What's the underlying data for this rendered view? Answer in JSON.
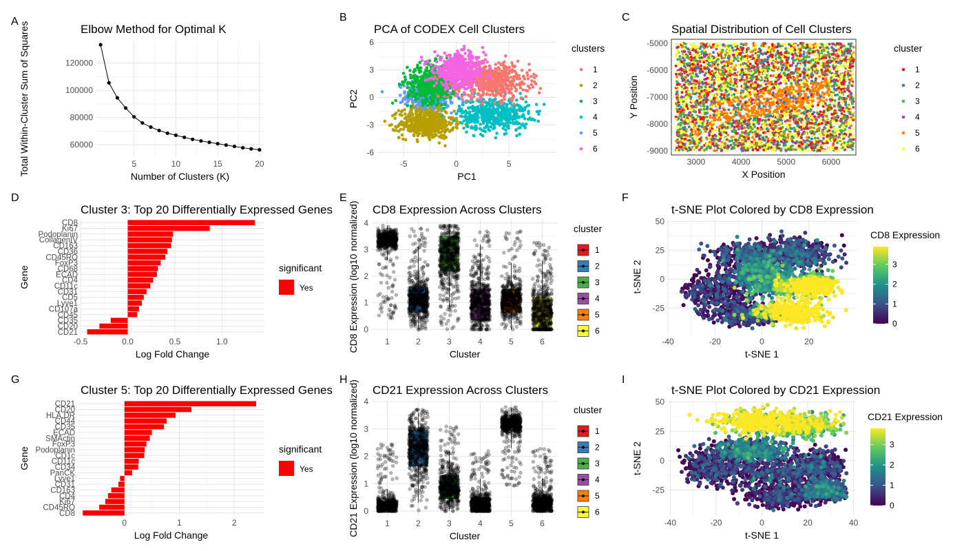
{
  "chart_data": [
    {
      "panel": "A",
      "type": "line",
      "title": "Elbow Method for Optimal K",
      "xlabel": "Number of Clusters (K)",
      "ylabel": "Total Within-Cluster Sum of Squares",
      "xlim": [
        0.5,
        20.5
      ],
      "ylim": [
        51000,
        136500
      ],
      "xticks": [
        5,
        10,
        15,
        20
      ],
      "yticks": [
        60000,
        80000,
        100000,
        120000
      ],
      "series": [
        {
          "x": [
            1,
            2,
            3,
            4,
            5,
            6,
            7,
            8,
            9,
            10,
            11,
            12,
            13,
            14,
            15,
            16,
            17,
            18,
            19,
            20
          ],
          "y": [
            133500,
            105500,
            94500,
            87000,
            80500,
            76000,
            73000,
            70500,
            68500,
            67000,
            65500,
            64000,
            62800,
            61800,
            60800,
            59800,
            58800,
            57800,
            57000,
            56300
          ]
        }
      ]
    },
    {
      "panel": "B",
      "type": "scatter",
      "title": "PCA of CODEX Cell Clusters",
      "xlabel": "PC1",
      "ylabel": "PC2",
      "xlim": [
        -7.5,
        9.5
      ],
      "ylim": [
        -6.5,
        6.2
      ],
      "xticks": [
        -5,
        0,
        5
      ],
      "yticks": [
        -6,
        -3,
        0,
        3,
        6
      ],
      "legend": {
        "title": "clusters",
        "position": "right",
        "labels": [
          "1",
          "2",
          "3",
          "4",
          "5",
          "6"
        ]
      },
      "series": [
        {
          "name": "1",
          "color": "#F8766D",
          "center": [
            3.5,
            1.8
          ],
          "spread": [
            2.3,
            1.3
          ]
        },
        {
          "name": "2",
          "color": "#B79F00",
          "center": [
            -2.8,
            -2.8
          ],
          "spread": [
            1.7,
            1.1
          ]
        },
        {
          "name": "3",
          "color": "#00BA38",
          "center": [
            -2.2,
            1.6
          ],
          "spread": [
            1.6,
            1.4
          ]
        },
        {
          "name": "4",
          "color": "#00BFC4",
          "center": [
            3.6,
            -1.8
          ],
          "spread": [
            2.2,
            1.2
          ]
        },
        {
          "name": "5",
          "color": "#619CFF",
          "center": [
            -2.5,
            0.2
          ],
          "spread": [
            1.5,
            1.2
          ]
        },
        {
          "name": "6",
          "color": "#F564E3",
          "center": [
            0.3,
            2.9
          ],
          "spread": [
            1.6,
            1.2
          ]
        }
      ]
    },
    {
      "panel": "C",
      "type": "scatter",
      "title": "Spatial Distribution of Cell Clusters",
      "xlabel": "X Position",
      "ylabel": "Y Position",
      "xlim": [
        2450,
        6550
      ],
      "ylim": [
        -9150,
        -4850
      ],
      "xticks": [
        3000,
        4000,
        5000,
        6000
      ],
      "yticks": [
        -9000,
        -8000,
        -7000,
        -6000,
        -5000
      ],
      "legend": {
        "title": "cluster",
        "position": "right",
        "labels": [
          "1",
          "2",
          "3",
          "4",
          "5",
          "6"
        ]
      },
      "series": [
        {
          "name": "1",
          "color": "#E41A1C"
        },
        {
          "name": "2",
          "color": "#377EB8"
        },
        {
          "name": "3",
          "color": "#4DAF4A"
        },
        {
          "name": "4",
          "color": "#984EA3"
        },
        {
          "name": "5",
          "color": "#FF7F00"
        },
        {
          "name": "6",
          "color": "#FFFF33"
        }
      ]
    },
    {
      "panel": "D",
      "type": "bar",
      "orientation": "horizontal",
      "title": "Cluster 3: Top 20 Differentially Expressed Genes",
      "xlabel": "Log Fold Change",
      "ylabel": "Gene",
      "xlim": [
        -0.5,
        1.45
      ],
      "xticks": [
        -0.5,
        0.0,
        0.5,
        1.0
      ],
      "categories": [
        "CD8",
        "Ki67",
        "Podoplanin",
        "CollagenIV",
        "CD163",
        "CD36",
        "CD45RO",
        "FoxP3",
        "CD68",
        "ECAD",
        "CD4",
        "CD11c",
        "CD31",
        "CD5",
        "Lyve1",
        "CD107a",
        "CD45",
        "CD35",
        "CD20",
        "CD21"
      ],
      "values": [
        1.35,
        0.87,
        0.48,
        0.47,
        0.46,
        0.42,
        0.4,
        0.35,
        0.32,
        0.31,
        0.27,
        0.24,
        0.2,
        0.17,
        0.15,
        0.12,
        0.1,
        -0.18,
        -0.3,
        -0.43
      ],
      "legend": {
        "title": "significant",
        "labels": [
          "Yes"
        ],
        "position": "right"
      },
      "color": "#FF0000"
    },
    {
      "panel": "E",
      "type": "box",
      "title": "CD8 Expression Across Clusters",
      "xlabel": "Cluster",
      "ylabel": "CD8 Expression (log10 normalized)",
      "ylim": [
        -0.2,
        4.15
      ],
      "yticks": [
        0,
        1,
        2,
        3,
        4
      ],
      "categories": [
        "1",
        "2",
        "3",
        "4",
        "5",
        "6"
      ],
      "boxes": [
        {
          "q1": 3.15,
          "median": 3.35,
          "q3": 3.55,
          "min": 2.6,
          "max": 3.9,
          "jitter_min": 0.4,
          "jitter_max": 3.9
        },
        {
          "q1": 0.65,
          "median": 1.15,
          "q3": 1.6,
          "min": 0.0,
          "max": 3.1,
          "jitter_min": 0.0,
          "jitter_max": 3.8
        },
        {
          "q1": 2.2,
          "median": 2.9,
          "q3": 3.5,
          "min": 0.8,
          "max": 3.9,
          "jitter_min": 0.0,
          "jitter_max": 3.9
        },
        {
          "q1": 0.35,
          "median": 0.7,
          "q3": 1.5,
          "min": 0.0,
          "max": 3.2,
          "jitter_min": 0.0,
          "jitter_max": 3.7
        },
        {
          "q1": 0.65,
          "median": 1.1,
          "q3": 1.5,
          "min": 0.0,
          "max": 2.5,
          "jitter_min": 0.0,
          "jitter_max": 3.7
        },
        {
          "q1": 0.05,
          "median": 0.5,
          "q3": 1.2,
          "min": 0.0,
          "max": 2.6,
          "jitter_min": 0.0,
          "jitter_max": 3.3
        }
      ],
      "legend": {
        "title": "cluster",
        "position": "right",
        "labels": [
          "1",
          "2",
          "3",
          "4",
          "5",
          "6"
        ]
      },
      "colors": [
        "#E41A1C",
        "#377EB8",
        "#4DAF4A",
        "#984EA3",
        "#FF7F00",
        "#FFFF33"
      ]
    },
    {
      "panel": "F",
      "type": "scatter",
      "title": "t-SNE Plot Colored by CD8 Expression",
      "xlabel": "t-SNE 1",
      "ylabel": "t-SNE 2",
      "xlim": [
        -40,
        40
      ],
      "ylim": [
        -48,
        52
      ],
      "xticks": [
        -40,
        -20,
        0,
        20
      ],
      "yticks": [
        -25,
        0,
        25,
        50
      ],
      "colorbar": {
        "title": "CD8 Expression",
        "ticks": [
          0,
          1,
          2,
          3
        ],
        "range": [
          0,
          3.9
        ]
      },
      "high_expression_region": "lower-right"
    },
    {
      "panel": "G",
      "type": "bar",
      "orientation": "horizontal",
      "title": "Cluster 5: Top 20 Differentially Expressed Genes",
      "xlabel": "Log Fold Change",
      "ylabel": "Gene",
      "xlim": [
        -0.85,
        2.55
      ],
      "xticks": [
        0,
        1,
        2
      ],
      "categories": [
        "CD21",
        "CD20",
        "HLA.DR",
        "CD44",
        "CD35",
        "ECAD",
        "SMActin",
        "FoxP3",
        "Podoplanin",
        "CD1c",
        "CD11c",
        "CD34",
        "PanCK",
        "Lyve1",
        "CD31",
        "CD163",
        "CD4",
        "Ki67",
        "CD45RO",
        "CD8"
      ],
      "values": [
        2.4,
        1.22,
        0.93,
        0.77,
        0.72,
        0.5,
        0.46,
        0.4,
        0.37,
        0.36,
        0.26,
        0.25,
        0.14,
        -0.08,
        -0.11,
        -0.24,
        -0.3,
        -0.35,
        -0.46,
        -0.76
      ],
      "legend": {
        "title": "significant",
        "labels": [
          "Yes"
        ],
        "position": "right"
      },
      "color": "#FF0000"
    },
    {
      "panel": "H",
      "type": "box",
      "title": "CD21 Expression Across Clusters",
      "xlabel": "Cluster",
      "ylabel": "CD21 Expression (log10 normalized)",
      "ylim": [
        -0.2,
        4.05
      ],
      "yticks": [
        0,
        1,
        2,
        3,
        4
      ],
      "categories": [
        "1",
        "2",
        "3",
        "4",
        "5",
        "6"
      ],
      "boxes": [
        {
          "q1": 0.0,
          "median": 0.05,
          "q3": 0.35,
          "min": 0.0,
          "max": 0.8,
          "jitter_min": 0.0,
          "jitter_max": 2.5
        },
        {
          "q1": 1.65,
          "median": 2.35,
          "q3": 2.95,
          "min": 0.3,
          "max": 3.6,
          "jitter_min": 0.0,
          "jitter_max": 3.7
        },
        {
          "q1": 0.45,
          "median": 0.8,
          "q3": 1.3,
          "min": 0.0,
          "max": 2.2,
          "jitter_min": 0.0,
          "jitter_max": 3.1
        },
        {
          "q1": 0.0,
          "median": 0.1,
          "q3": 0.5,
          "min": 0.0,
          "max": 1.2,
          "jitter_min": 0.0,
          "jitter_max": 2.2
        },
        {
          "q1": 2.95,
          "median": 3.2,
          "q3": 3.4,
          "min": 2.3,
          "max": 3.8,
          "jitter_min": 0.9,
          "jitter_max": 3.8
        },
        {
          "q1": 0.05,
          "median": 0.2,
          "q3": 0.5,
          "min": 0.0,
          "max": 1.2,
          "jitter_min": 0.0,
          "jitter_max": 2.3
        }
      ],
      "legend": {
        "title": "cluster",
        "position": "right",
        "labels": [
          "1",
          "2",
          "3",
          "4",
          "5",
          "6"
        ]
      },
      "colors": [
        "#E41A1C",
        "#377EB8",
        "#4DAF4A",
        "#984EA3",
        "#FF7F00",
        "#FFFF33"
      ]
    },
    {
      "panel": "I",
      "type": "scatter",
      "title": "t-SNE Plot Colored by CD21 Expression",
      "xlabel": "t-SNE 1",
      "ylabel": "t-SNE 2",
      "xlim": [
        -41,
        41
      ],
      "ylim": [
        -47,
        51
      ],
      "xticks": [
        -40,
        -20,
        0,
        20,
        40
      ],
      "yticks": [
        -25,
        0,
        25,
        50
      ],
      "colorbar": {
        "title": "CD21 Expression",
        "ticks": [
          0,
          1,
          2,
          3
        ],
        "range": [
          0,
          3.8
        ]
      },
      "high_expression_region": "top"
    }
  ]
}
